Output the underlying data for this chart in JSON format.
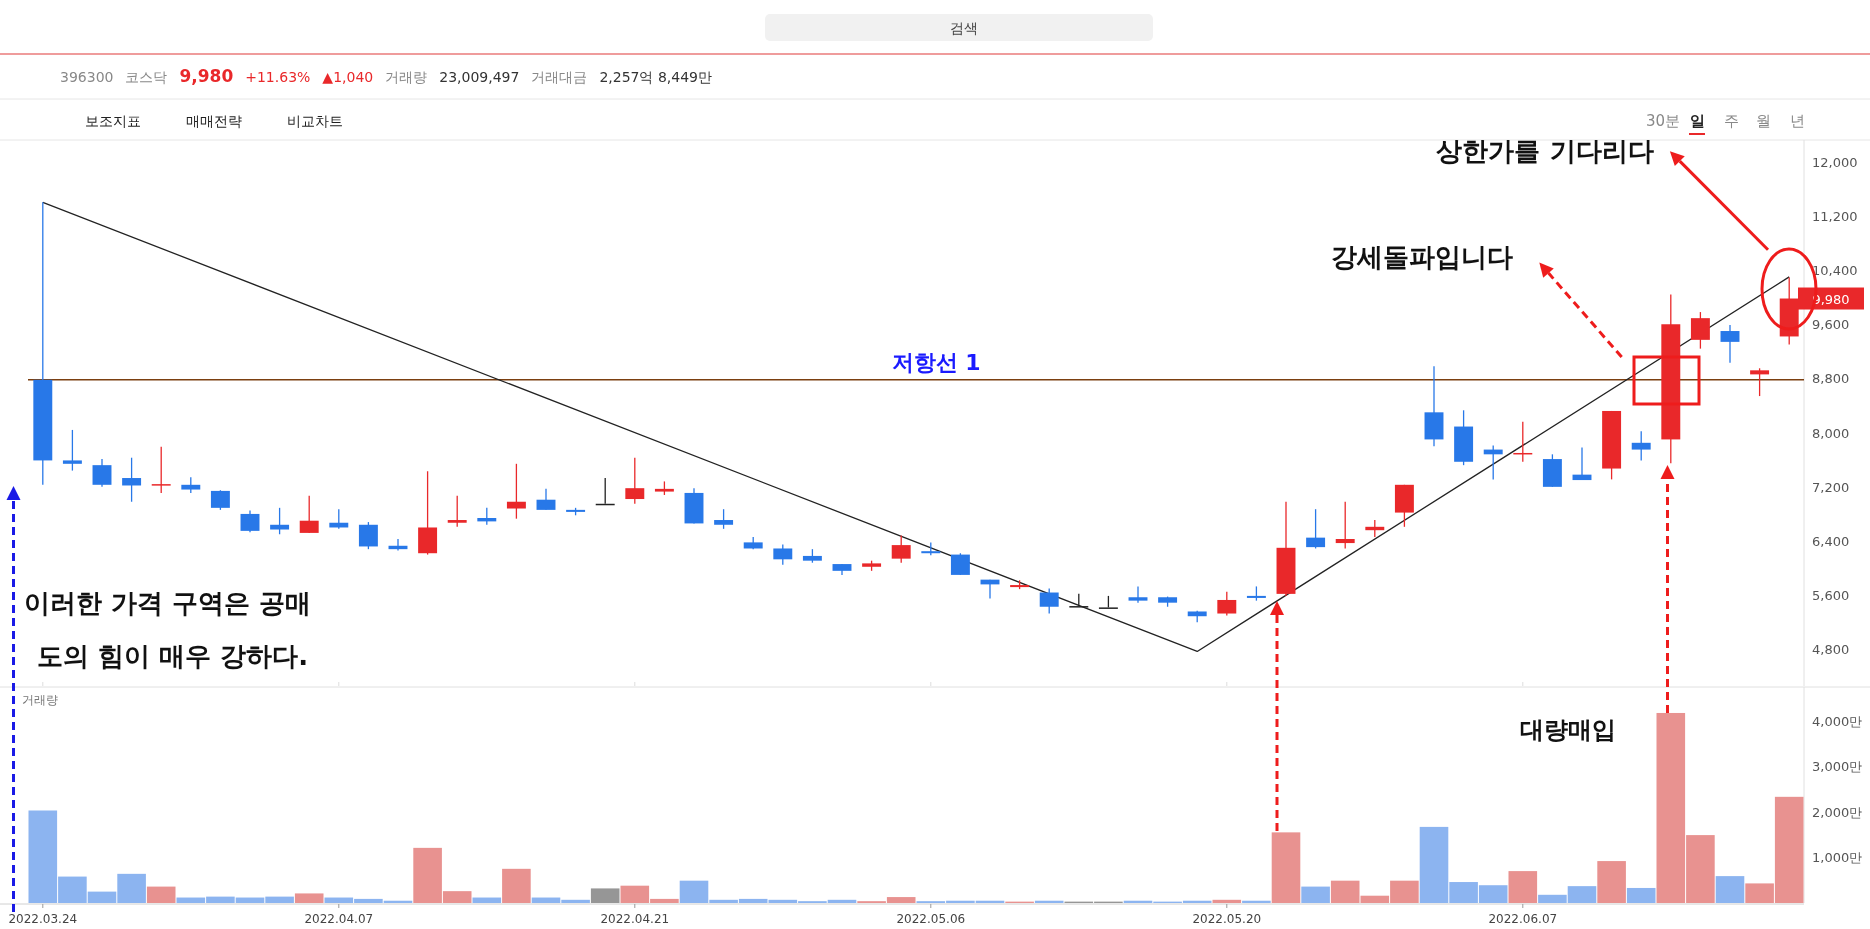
{
  "chart_data": [
    {
      "type": "candlestick",
      "categories": [
        "2022.03.24",
        null,
        null,
        null,
        null,
        null,
        null,
        null,
        null,
        null,
        "2022.04.07",
        null,
        null,
        null,
        null,
        null,
        null,
        null,
        null,
        null,
        "2022.04.21",
        null,
        null,
        null,
        null,
        null,
        null,
        null,
        null,
        null,
        "2022.05.06",
        null,
        null,
        null,
        null,
        null,
        null,
        null,
        null,
        null,
        "2022.05.20",
        null,
        null,
        null,
        null,
        null,
        null,
        null,
        null,
        null,
        "2022.06.07",
        null,
        null,
        null,
        null,
        null,
        null,
        null,
        null,
        null
      ],
      "ohlc": [
        [
          8780,
          11400,
          7230,
          7590
        ],
        [
          7590,
          8040,
          7440,
          7540
        ],
        [
          7520,
          7610,
          7200,
          7230
        ],
        [
          7330,
          7630,
          6980,
          7220
        ],
        [
          7220,
          7790,
          7110,
          7240
        ],
        [
          7230,
          7340,
          7110,
          7160
        ],
        [
          7140,
          7150,
          6860,
          6890
        ],
        [
          6800,
          6850,
          6530,
          6550
        ],
        [
          6640,
          6890,
          6500,
          6570
        ],
        [
          6520,
          7070,
          6520,
          6700
        ],
        [
          6670,
          6870,
          6580,
          6600
        ],
        [
          6640,
          6680,
          6280,
          6320
        ],
        [
          6330,
          6430,
          6260,
          6280
        ],
        [
          6220,
          7430,
          6200,
          6600
        ],
        [
          6670,
          7070,
          6610,
          6710
        ],
        [
          6740,
          6890,
          6640,
          6690
        ],
        [
          6880,
          7540,
          6730,
          6980
        ],
        [
          7010,
          7170,
          6860,
          6860
        ],
        [
          6860,
          6890,
          6780,
          6830
        ],
        [
          6950,
          7330,
          6950,
          6950
        ],
        [
          7020,
          7630,
          6950,
          7180
        ],
        [
          7130,
          7280,
          7080,
          7170
        ],
        [
          7110,
          7180,
          6660,
          6660
        ],
        [
          6710,
          6870,
          6580,
          6640
        ],
        [
          6380,
          6460,
          6280,
          6290
        ],
        [
          6290,
          6350,
          6050,
          6130
        ],
        [
          6180,
          6280,
          6080,
          6110
        ],
        [
          6060,
          6060,
          5900,
          5960
        ],
        [
          6020,
          6110,
          5960,
          6070
        ],
        [
          6140,
          6480,
          6080,
          6340
        ],
        [
          6250,
          6380,
          6190,
          6220
        ],
        [
          6200,
          6220,
          5900,
          5900
        ],
        [
          5830,
          5830,
          5550,
          5760
        ],
        [
          5720,
          5820,
          5690,
          5750
        ],
        [
          5640,
          5700,
          5330,
          5430
        ],
        [
          5440,
          5620,
          5440,
          5440
        ],
        [
          5420,
          5590,
          5420,
          5420
        ],
        [
          5570,
          5730,
          5490,
          5520
        ],
        [
          5570,
          5580,
          5430,
          5490
        ],
        [
          5360,
          5370,
          5200,
          5290
        ],
        [
          5330,
          5650,
          5300,
          5530
        ],
        [
          5590,
          5730,
          5520,
          5560
        ],
        [
          5620,
          6980,
          5590,
          6300
        ],
        [
          6450,
          6870,
          6290,
          6310
        ],
        [
          6370,
          6980,
          6290,
          6430
        ],
        [
          6560,
          6710,
          6460,
          6610
        ],
        [
          6820,
          7230,
          6610,
          7230
        ],
        [
          8300,
          8980,
          7800,
          7900
        ],
        [
          8090,
          8330,
          7520,
          7570
        ],
        [
          7750,
          7810,
          7310,
          7680
        ],
        [
          7680,
          8160,
          7570,
          7700
        ],
        [
          7610,
          7680,
          7200,
          7200
        ],
        [
          7380,
          7780,
          7300,
          7300
        ],
        [
          7470,
          8320,
          7310,
          8320
        ],
        [
          7850,
          8020,
          7590,
          7750
        ],
        [
          7900,
          10040,
          7550,
          9600
        ],
        [
          9370,
          9780,
          9240,
          9690
        ],
        [
          9500,
          9590,
          9030,
          9340
        ],
        [
          8860,
          8950,
          8540,
          8920
        ],
        [
          9420,
          10290,
          9300,
          9980
        ]
      ],
      "colors": [
        "#2878e8",
        "#2878e8",
        "#2878e8",
        "#2878e8",
        "#e9282a",
        "#2878e8",
        "#2878e8",
        "#2878e8",
        "#2878e8",
        "#e9282a",
        "#2878e8",
        "#2878e8",
        "#2878e8",
        "#e9282a",
        "#e9282a",
        "#2878e8",
        "#e9282a",
        "#2878e8",
        "#2878e8",
        "#222222",
        "#e9282a",
        "#e9282a",
        "#2878e8",
        "#2878e8",
        "#2878e8",
        "#2878e8",
        "#2878e8",
        "#2878e8",
        "#e9282a",
        "#e9282a",
        "#2878e8",
        "#2878e8",
        "#2878e8",
        "#e9282a",
        "#2878e8",
        "#222222",
        "#222222",
        "#2878e8",
        "#2878e8",
        "#2878e8",
        "#e9282a",
        "#2878e8",
        "#e9282a",
        "#2878e8",
        "#e9282a",
        "#e9282a",
        "#e9282a",
        "#2878e8",
        "#2878e8",
        "#2878e8",
        "#e9282a",
        "#2878e8",
        "#2878e8",
        "#e9282a",
        "#2878e8",
        "#e9282a",
        "#e9282a",
        "#2878e8",
        "#e9282a",
        "#e9282a"
      ],
      "series": [
        {
          "type": "line",
          "color": "#222222",
          "values": [
            11400,
            null,
            null,
            null,
            null,
            null,
            null,
            null,
            null,
            null,
            null,
            null,
            null,
            null,
            null,
            null,
            null,
            null,
            null,
            null,
            null,
            null,
            null,
            null,
            null,
            null,
            null,
            null,
            null,
            null,
            null,
            null,
            null,
            null,
            null,
            null,
            null,
            null,
            null,
            4770,
            null,
            null,
            null,
            null,
            null,
            null,
            null,
            null,
            null,
            null,
            null,
            null,
            null,
            null,
            null,
            null,
            null,
            null,
            null,
            10300
          ]
        }
      ],
      "ylim": [
        4260,
        12320
      ],
      "yticks": [
        {
          "value": 4800,
          "label": "4,800"
        },
        {
          "value": 5600,
          "label": "5,600"
        },
        {
          "value": 6400,
          "label": "6,400"
        },
        {
          "value": 7200,
          "label": "7,200"
        },
        {
          "value": 8000,
          "label": "8,000"
        },
        {
          "value": 8800,
          "label": "8,800"
        },
        {
          "value": 9600,
          "label": "9,600"
        },
        {
          "value": 10400,
          "label": "10,400"
        },
        {
          "value": 11200,
          "label": "11,200"
        },
        {
          "value": 12000,
          "label": "12,000"
        }
      ],
      "tick_labels": "y",
      "ref_lines": [
        {
          "axis": "y",
          "value": 8780,
          "label": "저항선 1",
          "color": "#7b3f10"
        }
      ],
      "annotations": [
        "검색",
        "396300",
        "코스닥",
        "9,980",
        "+11.63%",
        "▲1,040",
        "거래량",
        "23,009,497",
        "거래대금",
        "2,257억 8,449만",
        "보조지표",
        "매매전략",
        "비교차트",
        "30분",
        "일",
        "주",
        "월",
        "년",
        "이러한 가격 구역은 공매\n도의 힘이 매우 강하다.",
        "강세돌파입니다",
        "상한가를 기다리다",
        "9,980"
      ]
    },
    {
      "type": "bar",
      "title": "거래량",
      "categories": [
        "2022.03.24",
        null,
        null,
        null,
        null,
        null,
        null,
        null,
        null,
        null,
        "2022.04.07",
        null,
        null,
        null,
        null,
        null,
        null,
        null,
        null,
        null,
        "2022.04.21",
        null,
        null,
        null,
        null,
        null,
        null,
        null,
        null,
        null,
        "2022.05.06",
        null,
        null,
        null,
        null,
        null,
        null,
        null,
        null,
        null,
        "2022.05.20",
        null,
        null,
        null,
        null,
        null,
        null,
        null,
        null,
        null,
        "2022.06.07",
        null,
        null,
        null,
        null,
        null,
        null,
        null,
        null,
        null
      ],
      "values": [
        2030,
        580,
        250,
        640,
        360,
        120,
        140,
        120,
        140,
        210,
        120,
        90,
        50,
        1210,
        260,
        120,
        750,
        120,
        70,
        320,
        380,
        90,
        490,
        70,
        90,
        70,
        40,
        70,
        40,
        130,
        40,
        50,
        50,
        30,
        50,
        30,
        30,
        50,
        30,
        50,
        70,
        50,
        1550,
        360,
        490,
        160,
        490,
        1670,
        460,
        390,
        700,
        180,
        370,
        920,
        330,
        4170,
        1490,
        590,
        430,
        2330
      ],
      "colors": [
        "#8cb4f0",
        "#8cb4f0",
        "#8cb4f0",
        "#8cb4f0",
        "#e89290",
        "#8cb4f0",
        "#8cb4f0",
        "#8cb4f0",
        "#8cb4f0",
        "#e89290",
        "#8cb4f0",
        "#8cb4f0",
        "#8cb4f0",
        "#e89290",
        "#e89290",
        "#8cb4f0",
        "#e89290",
        "#8cb4f0",
        "#8cb4f0",
        "#969696",
        "#e89290",
        "#e89290",
        "#8cb4f0",
        "#8cb4f0",
        "#8cb4f0",
        "#8cb4f0",
        "#8cb4f0",
        "#8cb4f0",
        "#e89290",
        "#e89290",
        "#8cb4f0",
        "#8cb4f0",
        "#8cb4f0",
        "#e89290",
        "#8cb4f0",
        "#969696",
        "#969696",
        "#8cb4f0",
        "#8cb4f0",
        "#8cb4f0",
        "#e89290",
        "#8cb4f0",
        "#e89290",
        "#8cb4f0",
        "#e89290",
        "#e89290",
        "#e89290",
        "#8cb4f0",
        "#8cb4f0",
        "#8cb4f0",
        "#e89290",
        "#8cb4f0",
        "#8cb4f0",
        "#e89290",
        "#8cb4f0",
        "#e89290",
        "#e89290",
        "#8cb4f0",
        "#e89290",
        "#e89290"
      ],
      "ylim": [
        0,
        4740
      ],
      "yticks": [
        {
          "value": 1000,
          "label": "1,000만"
        },
        {
          "value": 2000,
          "label": "2,000만"
        },
        {
          "value": 3000,
          "label": "3,000만"
        },
        {
          "value": 4000,
          "label": "4,000만"
        }
      ],
      "annotations": [
        "대량매입"
      ]
    }
  ]
}
